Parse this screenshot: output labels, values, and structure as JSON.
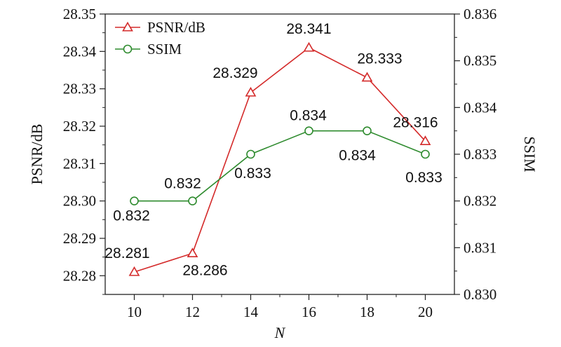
{
  "chart_data": {
    "type": "line",
    "xlabel": "N",
    "ylabel_left": "PSNR/dB",
    "ylabel_right": "SSIM",
    "x": [
      10,
      12,
      14,
      16,
      18,
      20
    ],
    "xlim": [
      9,
      21
    ],
    "x_ticks": [
      "10",
      "12",
      "14",
      "16",
      "18",
      "20"
    ],
    "ylim_left": [
      28.275,
      28.35
    ],
    "ylim_right": [
      0.83,
      0.836
    ],
    "y_ticks_left": [
      "28.28",
      "28.29",
      "28.30",
      "28.31",
      "28.32",
      "28.33",
      "28.34",
      "28.35"
    ],
    "y_ticks_right": [
      "0.830",
      "0.831",
      "0.832",
      "0.833",
      "0.834",
      "0.835",
      "0.836"
    ],
    "grid": false,
    "legend_position": "top-left",
    "series": [
      {
        "name": "PSNR/dB",
        "axis": "left",
        "color": "#d42a2a",
        "marker": "triangle",
        "values": [
          28.281,
          28.286,
          28.329,
          28.341,
          28.333,
          28.316
        ],
        "labels": [
          "28.281",
          "28.286",
          "28.329",
          "28.341",
          "28.333",
          "28.316"
        ]
      },
      {
        "name": "SSIM",
        "axis": "right",
        "color": "#2e8b2e",
        "marker": "circle",
        "values": [
          0.832,
          0.832,
          0.833,
          0.834,
          0.834,
          0.833
        ],
        "plot_values": [
          0.832,
          0.832,
          0.833,
          0.8335,
          0.8335,
          0.833
        ],
        "labels": [
          "0.832",
          "0.832",
          "0.833",
          "0.834",
          "0.834",
          "0.833"
        ]
      }
    ]
  }
}
